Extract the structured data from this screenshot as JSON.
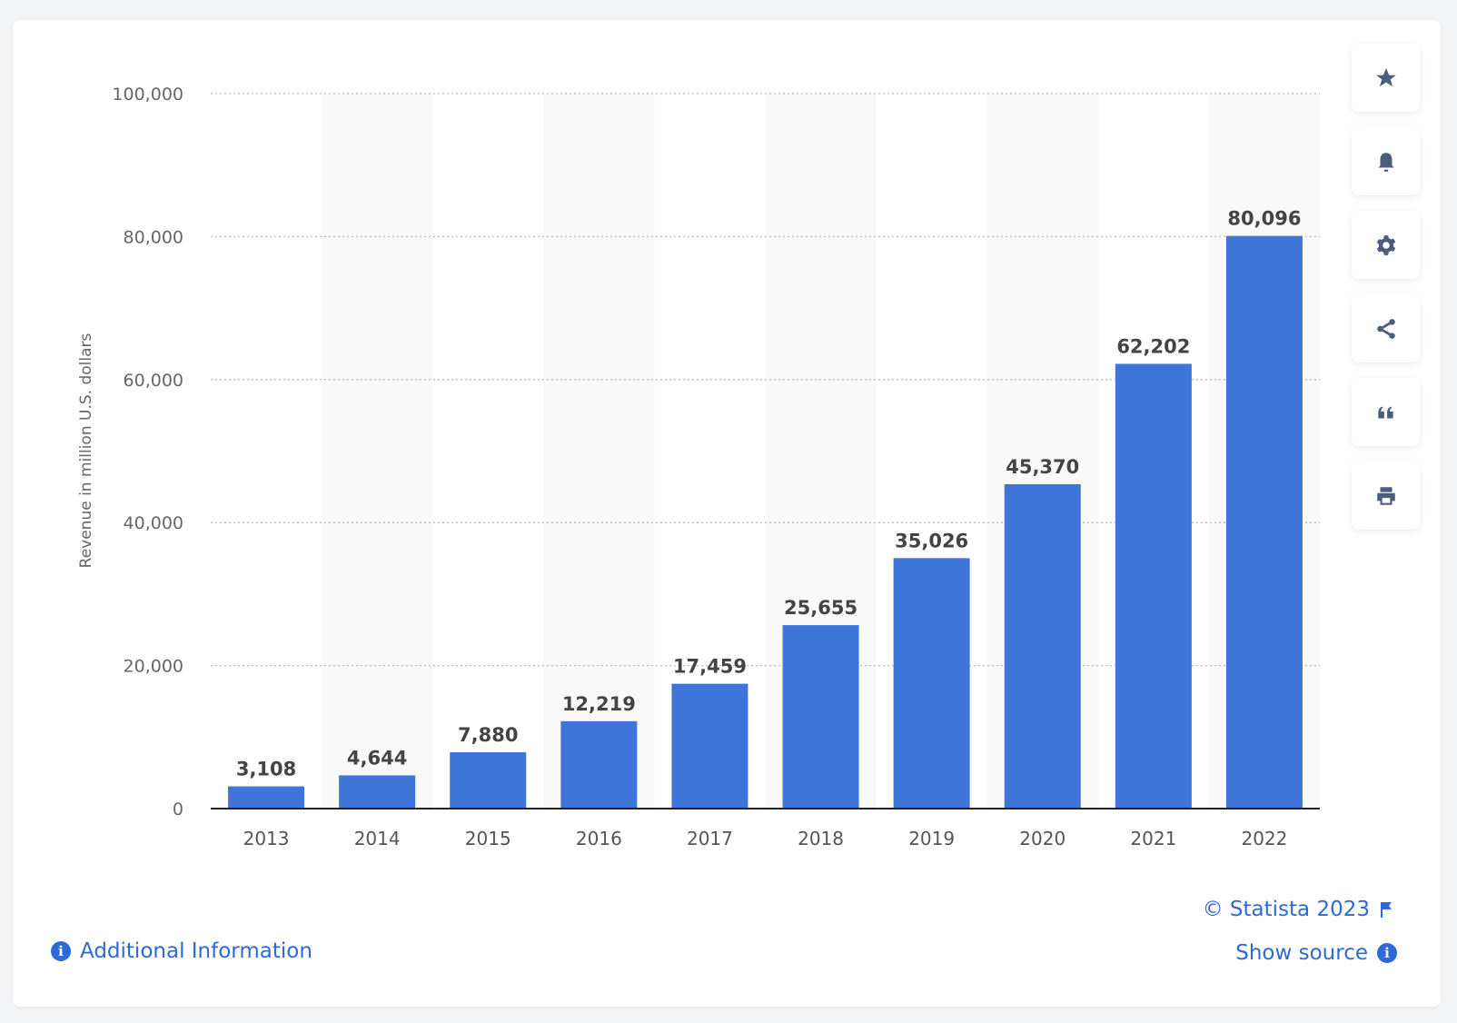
{
  "chart_data": {
    "type": "bar",
    "categories": [
      "2013",
      "2014",
      "2015",
      "2016",
      "2017",
      "2018",
      "2019",
      "2020",
      "2021",
      "2022"
    ],
    "values": [
      3108,
      4644,
      7880,
      12219,
      17459,
      25655,
      35026,
      45370,
      62202,
      80096
    ],
    "value_labels": [
      "3,108",
      "4,644",
      "7,880",
      "12,219",
      "17,459",
      "25,655",
      "35,026",
      "45,370",
      "62,202",
      "80,096"
    ],
    "ylabel": "Revenue in million U.S. dollars",
    "xlabel": "",
    "ylim": [
      0,
      100000
    ],
    "yticks": [
      0,
      20000,
      40000,
      60000,
      80000,
      100000
    ],
    "ytick_labels": [
      "0",
      "20,000",
      "40,000",
      "60,000",
      "80,000",
      "100,000"
    ],
    "grid": "dotted horizontal",
    "bar_color": "#3f75d8"
  },
  "toolbar": {
    "icons": [
      "star-icon",
      "bell-icon",
      "gear-icon",
      "share-icon",
      "quote-icon",
      "print-icon"
    ]
  },
  "footer": {
    "copyright": "© Statista 2023",
    "show_source": "Show source",
    "additional_info": "Additional Information"
  },
  "colors": {
    "link": "#2d6ad8",
    "icon": "#4a5d7e"
  }
}
